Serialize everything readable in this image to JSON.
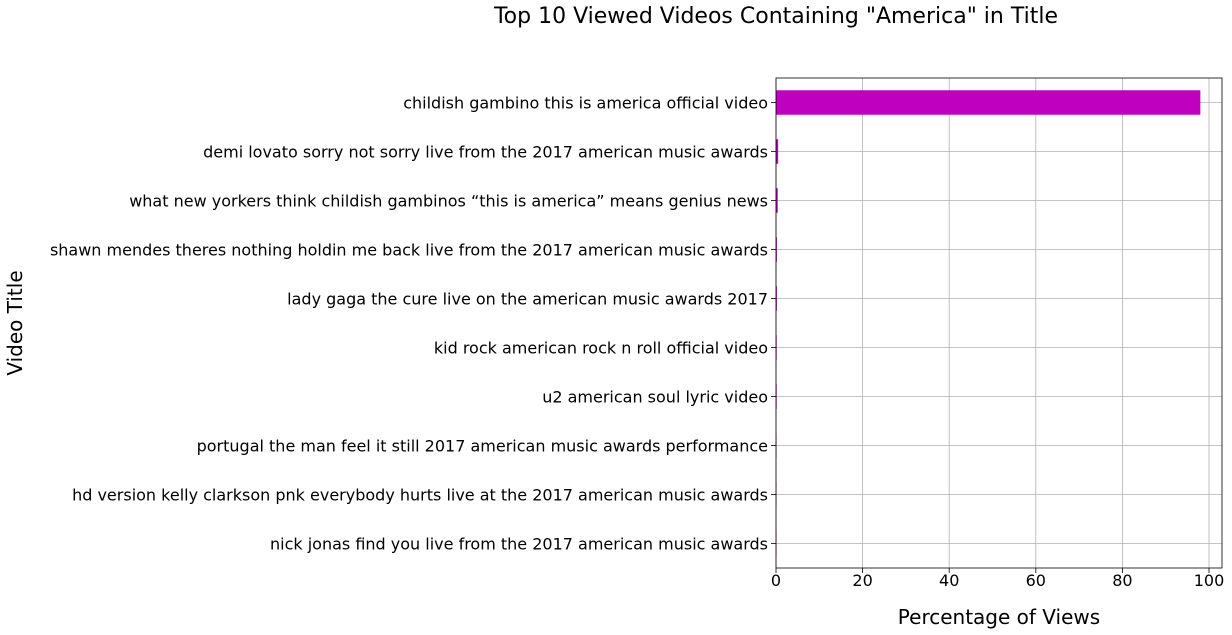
{
  "chart_data": {
    "type": "bar",
    "orientation": "horizontal",
    "title": "Top 10 Viewed Videos Containing \"America\" in Title",
    "xlabel": "Percentage of Views",
    "ylabel": "Video Title",
    "xlim": [
      0,
      103
    ],
    "xticks": [
      0,
      20,
      40,
      60,
      80,
      100
    ],
    "grid": true,
    "bar_color": "#bf00bf",
    "categories": [
      "childish gambino this is america official video",
      "demi lovato sorry not sorry live from the 2017 american music awards",
      "what new yorkers think childish gambinos “this is america” means genius news",
      "shawn mendes theres nothing holdin me back live from the 2017 american music awards",
      "lady gaga the cure live on the american music awards 2017",
      "kid rock american rock n roll official video",
      "u2 american soul lyric video",
      "portugal the man feel it still 2017 american music awards performance",
      "hd version kelly clarkson pnk everybody hurts live at the 2017 american music awards",
      "nick jonas find you live from the 2017 american music awards"
    ],
    "values": [
      98.0,
      0.5,
      0.4,
      0.2,
      0.2,
      0.15,
      0.15,
      0.1,
      0.1,
      0.1
    ]
  }
}
